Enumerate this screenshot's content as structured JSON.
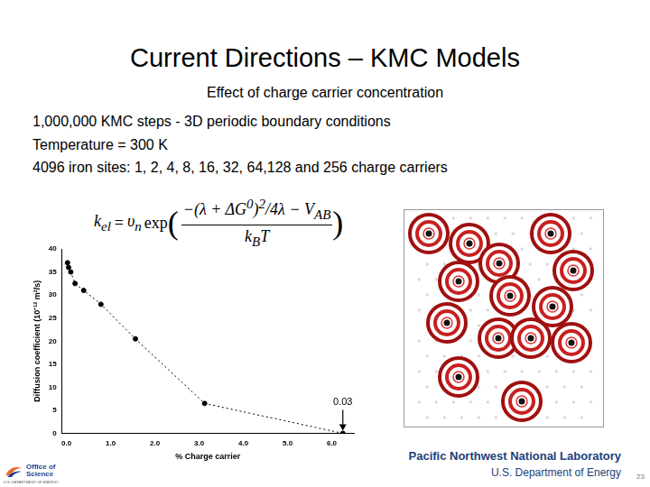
{
  "title": "Current Directions – KMC Models",
  "subtitle": "Effect of charge carrier concentration",
  "lines": [
    "1,000,000 KMC steps - 3D periodic boundary conditions",
    "Temperature = 300 K",
    "4096 iron sites: 1, 2, 4, 8, 16, 32, 64,128 and 256 charge carriers"
  ],
  "equation": {
    "lhs": "k",
    "lhs_sub": "el",
    "eq": "=",
    "prefactor": "υ",
    "prefactor_sub": "n",
    "func": "exp",
    "numerator": "−(λ + ΔG",
    "numerator_sup": "0",
    "numerator_rest": ")",
    "numerator_sup2": "2",
    "numerator_tail": "/4λ − V",
    "numerator_sub": "AB",
    "denominator": "k",
    "denominator_sub": "B",
    "denominator_rest": "T"
  },
  "footer": {
    "logo": "Office of Science",
    "logo_sub": "U.S. DEPARTMENT OF ENERGY",
    "lab": "Pacific Northwest National Laboratory",
    "department": "U.S. Department of Energy",
    "page": "23"
  },
  "chart_data": {
    "type": "line",
    "x_label": "% Charge carrier",
    "y_label": "Diffusion coefficient (10⁻¹² m²/s)",
    "x": [
      0.024,
      0.049,
      0.098,
      0.195,
      0.39,
      0.78,
      1.56,
      3.125,
      6.25
    ],
    "values": [
      37,
      36,
      35,
      32.5,
      31,
      28,
      20.5,
      6.5,
      0.03
    ],
    "color": "#000000",
    "marker": "circle",
    "line_style": "dotted",
    "xlim": [
      -0.1,
      6.5
    ],
    "xticks": [
      {
        "value": 0,
        "label": "0.0"
      },
      {
        "value": 1,
        "label": "1.0"
      },
      {
        "value": 2,
        "label": "2.0"
      },
      {
        "value": 3,
        "label": "3.0"
      },
      {
        "value": 4,
        "label": "4.0"
      },
      {
        "value": 5,
        "label": "5.0"
      },
      {
        "value": 6,
        "label": "6.0"
      }
    ],
    "ylim": [
      0,
      40
    ],
    "yticks": [
      0,
      5,
      10,
      15,
      20,
      25,
      30,
      35,
      40
    ],
    "grid": false,
    "annotations": [
      {
        "text": "0.03",
        "x": 6.25,
        "y": 0.03
      }
    ]
  }
}
